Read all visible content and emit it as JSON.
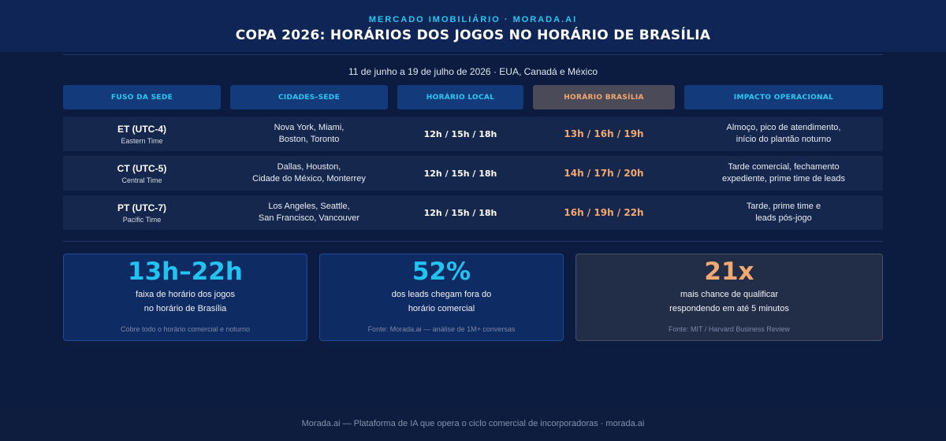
{
  "header": {
    "kicker": "MERCADO IMOBILIÁRIO · MORADA.AI",
    "title": "COPA 2026: HORÁRIOS DOS JOGOS NO HORÁRIO DE BRASÍLIA"
  },
  "subtitle": "11 de junho a 19 de julho de 2026 · EUA, Canadá e México",
  "table": {
    "headers": [
      "FUSO DA SEDE",
      "CIDADES-SEDE",
      "HORÁRIO LOCAL",
      "HORÁRIO BRASÍLIA",
      "IMPACTO OPERACIONAL"
    ],
    "rows": [
      {
        "zone": "ET (UTC-4)",
        "zone_name": "Eastern Time",
        "cities_1": "Nova York, Miami,",
        "cities_2": "Boston, Toronto",
        "local": "12h / 15h / 18h",
        "brasilia": "13h / 16h / 19h",
        "impact_1": "Almoço, pico de atendimento,",
        "impact_2": "início do plantão noturno"
      },
      {
        "zone": "CT (UTC-5)",
        "zone_name": "Central Time",
        "cities_1": "Dallas, Houston,",
        "cities_2": "Cidade do México, Monterrey",
        "local": "12h / 15h / 18h",
        "brasilia": "14h / 17h / 20h",
        "impact_1": "Tarde comercial, fechamento",
        "impact_2": "expediente, prime time de leads"
      },
      {
        "zone": "PT (UTC-7)",
        "zone_name": "Pacific Time",
        "cities_1": "Los Angeles, Seattle,",
        "cities_2": "San Francisco, Vancouver",
        "local": "12h / 15h / 18h",
        "brasilia": "16h / 19h / 22h",
        "impact_1": "Tarde, prime time e",
        "impact_2": "leads pós-jogo"
      }
    ]
  },
  "cards": [
    {
      "value": "13h–22h",
      "desc_1": "faixa de horário dos jogos",
      "desc_2": "no horário de Brasília",
      "note": "Cobre todo o horário comercial e noturno"
    },
    {
      "value": "52%",
      "desc_1": "dos leads chegam fora do",
      "desc_2": "horário comercial",
      "note": "Fonte: Morada.ai — análise de 1M+ conversas"
    },
    {
      "value": "21x",
      "desc_1": "mais chance de qualificar",
      "desc_2": "respondendo em até 5 minutos",
      "note": "Fonte: MIT / Harvard Business Review"
    }
  ],
  "footer": "Morada.ai — Plataforma de IA que opera o ciclo comercial de incorporadoras · morada.ai",
  "colors": {
    "accent_cyan": "#21c4f0",
    "accent_orange": "#f4a871",
    "background": "#0b1c40"
  }
}
